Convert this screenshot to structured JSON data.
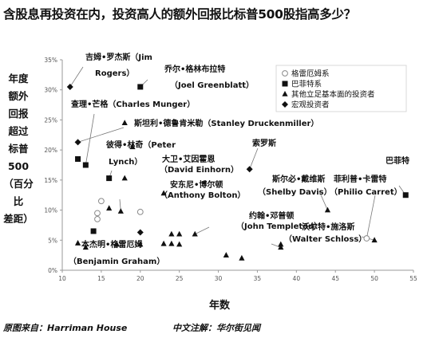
{
  "title": "含股息再投资在内，投资高人的额外回报比标普500股指高多少？",
  "ylabel_lines": [
    "年度",
    "额外",
    "回报",
    "超过",
    "标普",
    "500",
    "（百分比",
    "差距）"
  ],
  "source": "原图来自：Harriman House",
  "note": "中文注解：华尔街见闻",
  "chart_data": {
    "type": "scatter",
    "title": "含股息再投资在内，投资高人的额外回报比标普500股指高多少？",
    "xlabel": "年数",
    "ylabel": "年度额外回报超过标普500（百分比差距）",
    "xlim": [
      10,
      55
    ],
    "ylim": [
      0,
      35
    ],
    "xticks": [
      10,
      15,
      20,
      25,
      30,
      35,
      40,
      45,
      50,
      55
    ],
    "yticks": [
      "0%",
      "5%",
      "10%",
      "15%",
      "20%",
      "25%",
      "30%",
      "35%"
    ],
    "grid": false,
    "legend_position": "top-right",
    "series": [
      {
        "name": "格雷厄姆系",
        "marker": "circle-open",
        "points": [
          [
            15,
            11.5
          ],
          [
            14.5,
            8.5
          ],
          [
            14.5,
            9.5
          ],
          [
            20,
            9.7
          ],
          [
            49,
            5.3
          ]
        ]
      },
      {
        "name": "巴菲特系",
        "marker": "square",
        "points": [
          [
            12,
            18.5
          ],
          [
            13,
            17.5
          ],
          [
            20,
            30.5
          ],
          [
            16,
            15.3
          ],
          [
            14,
            6.5
          ],
          [
            54,
            12.5
          ]
        ]
      },
      {
        "name": "其他立足基本面的投资者",
        "marker": "triangle",
        "points": [
          [
            12,
            4.5
          ],
          [
            13,
            3.8
          ],
          [
            16,
            10.3
          ],
          [
            17.5,
            9.8
          ],
          [
            18,
            15.3
          ],
          [
            17,
            4.3
          ],
          [
            18,
            24.5
          ],
          [
            19,
            20.5
          ],
          [
            20,
            4.3
          ],
          [
            23,
            12.8
          ],
          [
            23,
            4.4
          ],
          [
            24,
            6.0
          ],
          [
            24,
            4.4
          ],
          [
            25,
            6.0
          ],
          [
            25,
            4.3
          ],
          [
            27,
            6.0
          ],
          [
            31,
            2.5
          ],
          [
            33,
            2.0
          ],
          [
            38,
            4.3
          ],
          [
            38,
            3.8
          ],
          [
            44,
            10.0
          ],
          [
            50,
            5.0
          ]
        ]
      },
      {
        "name": "宏观投资者",
        "marker": "diamond",
        "points": [
          [
            11,
            30.5
          ],
          [
            12,
            21.3
          ],
          [
            20,
            6.3
          ],
          [
            34,
            16.8
          ]
        ]
      }
    ],
    "annotations": [
      {
        "text": "吉姆•罗杰斯（Jim",
        "target": [
          11,
          30.5
        ]
      },
      {
        "text": "Rogers）",
        "target": [
          11,
          30.5
        ]
      },
      {
        "text": "乔尔•格林布拉特",
        "target": [
          20,
          30.5
        ]
      },
      {
        "text": "（Joel Greenblatt）",
        "target": [
          20,
          30.5
        ]
      },
      {
        "text": "查理•芒格（Charles Munger）",
        "target": [
          13,
          17.5
        ]
      },
      {
        "text": "斯坦利•德鲁肯米勒（Stanley Druckenmiller）",
        "target": [
          12,
          21.3
        ]
      },
      {
        "text": "彼得•林奇（Peter",
        "target": [
          16,
          15.3
        ]
      },
      {
        "text": "Lynch）",
        "target": [
          16,
          15.3
        ]
      },
      {
        "text": "大卫•艾因霍恩",
        "target": [
          17.5,
          9.8
        ]
      },
      {
        "text": "（David Einhorn）",
        "target": [
          17.5,
          9.8
        ]
      },
      {
        "text": "安东尼•博尔顿",
        "target": [
          27,
          6.0
        ]
      },
      {
        "text": "（Anthony Bolton）",
        "target": [
          27,
          6.0
        ]
      },
      {
        "text": "索罗斯",
        "target": [
          34,
          16.8
        ]
      },
      {
        "text": "斯尔必•戴维斯",
        "target": [
          44,
          10.0
        ]
      },
      {
        "text": "（Shelby Davis）",
        "target": [
          44,
          10.0
        ]
      },
      {
        "text": "菲利普•卡雷特",
        "target": [
          49,
          5.3
        ]
      },
      {
        "text": "（Philio Carret）",
        "target": [
          49,
          5.3
        ]
      },
      {
        "text": "巴菲特",
        "target": [
          54,
          12.5
        ]
      },
      {
        "text": "约翰•邓普顿",
        "target": [
          38,
          3.8
        ]
      },
      {
        "text": "（John Templeton）",
        "target": [
          38,
          3.8
        ]
      },
      {
        "text": "沃尔特•施洛斯",
        "target": [
          50,
          5.0
        ]
      },
      {
        "text": "（Walter Schloss）",
        "target": [
          50,
          5.0
        ]
      },
      {
        "text": "本杰明•格雷厄姆",
        "target": [
          12,
          4.5
        ]
      },
      {
        "text": "（Benjamin Graham）",
        "target": [
          12,
          4.5
        ]
      }
    ]
  }
}
